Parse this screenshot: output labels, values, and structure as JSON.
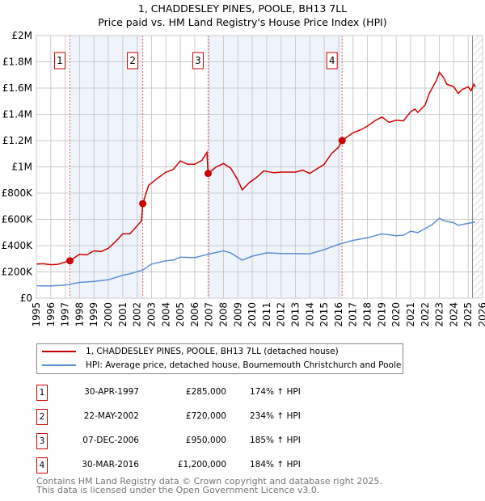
{
  "chart_data": {
    "type": "line",
    "title": "1, CHADDESLEY PINES, POOLE, BH13 7LL",
    "subtitle": "Price paid vs. HM Land Registry's House Price Index (HPI)",
    "xlim": [
      1995,
      2026
    ],
    "ylim": [
      0,
      2000000
    ],
    "x_ticks": [
      "1995",
      "1996",
      "1997",
      "1998",
      "1999",
      "2000",
      "2001",
      "2002",
      "2003",
      "2004",
      "2005",
      "2006",
      "2007",
      "2008",
      "2009",
      "2010",
      "2011",
      "2012",
      "2013",
      "2014",
      "2015",
      "2016",
      "2017",
      "2018",
      "2019",
      "2020",
      "2021",
      "2022",
      "2023",
      "2024",
      "2025",
      "2026"
    ],
    "y_ticks": [
      {
        "v": 0,
        "label": "£0"
      },
      {
        "v": 200000,
        "label": "£200K"
      },
      {
        "v": 400000,
        "label": "£400K"
      },
      {
        "v": 600000,
        "label": "£600K"
      },
      {
        "v": 800000,
        "label": "£800K"
      },
      {
        "v": 1000000,
        "label": "£1M"
      },
      {
        "v": 1200000,
        "label": "£1.2M"
      },
      {
        "v": 1400000,
        "label": "£1.4M"
      },
      {
        "v": 1600000,
        "label": "£1.6M"
      },
      {
        "v": 1800000,
        "label": "£1.8M"
      },
      {
        "v": 2000000,
        "label": "£2M"
      }
    ],
    "grid": true,
    "shaded_ranges": [
      [
        1997.33,
        2002.39
      ],
      [
        2006.93,
        2016.24
      ]
    ],
    "forecast_hatch_from": 2025.3,
    "series": [
      {
        "name": "1, CHADDESLEY PINES, POOLE, BH13 7LL (detached house)",
        "color": "#cc0000",
        "points": [
          [
            1995,
            260
          ],
          [
            1995.5,
            262
          ],
          [
            1996,
            255
          ],
          [
            1996.5,
            258
          ],
          [
            1997,
            275
          ],
          [
            1997.33,
            285
          ],
          [
            1998,
            335
          ],
          [
            1998.5,
            330
          ],
          [
            1999,
            360
          ],
          [
            1999.5,
            355
          ],
          [
            2000,
            380
          ],
          [
            2000.5,
            430
          ],
          [
            2001,
            490
          ],
          [
            2001.5,
            490
          ],
          [
            2002,
            550
          ],
          [
            2002.3,
            590
          ],
          [
            2002.39,
            720
          ],
          [
            2002.8,
            860
          ],
          [
            2003.5,
            920
          ],
          [
            2004,
            960
          ],
          [
            2004.5,
            980
          ],
          [
            2005,
            1045
          ],
          [
            2005.5,
            1020
          ],
          [
            2006,
            1020
          ],
          [
            2006.5,
            1050
          ],
          [
            2006.85,
            1110
          ],
          [
            2006.93,
            950
          ],
          [
            2007.5,
            1000
          ],
          [
            2008,
            1025
          ],
          [
            2008.5,
            990
          ],
          [
            2009,
            900
          ],
          [
            2009.3,
            825
          ],
          [
            2009.8,
            880
          ],
          [
            2010.3,
            920
          ],
          [
            2010.8,
            970
          ],
          [
            2011.5,
            955
          ],
          [
            2012,
            960
          ],
          [
            2013,
            960
          ],
          [
            2013.5,
            975
          ],
          [
            2014,
            950
          ],
          [
            2014.5,
            985
          ],
          [
            2015,
            1020
          ],
          [
            2015.5,
            1100
          ],
          [
            2016,
            1150
          ],
          [
            2016.24,
            1200
          ],
          [
            2017,
            1260
          ],
          [
            2017.5,
            1280
          ],
          [
            2018,
            1310
          ],
          [
            2018.5,
            1350
          ],
          [
            2019,
            1380
          ],
          [
            2019.5,
            1340
          ],
          [
            2020,
            1355
          ],
          [
            2020.5,
            1350
          ],
          [
            2021,
            1420
          ],
          [
            2021.3,
            1440
          ],
          [
            2021.5,
            1415
          ],
          [
            2022,
            1470
          ],
          [
            2022.3,
            1560
          ],
          [
            2022.8,
            1660
          ],
          [
            2023,
            1720
          ],
          [
            2023.3,
            1680
          ],
          [
            2023.5,
            1630
          ],
          [
            2024,
            1610
          ],
          [
            2024.3,
            1560
          ],
          [
            2024.6,
            1590
          ],
          [
            2025,
            1610
          ],
          [
            2025.2,
            1580
          ],
          [
            2025.4,
            1630
          ],
          [
            2025.5,
            1610
          ]
        ]
      },
      {
        "name": "HPI: Average price, detached house, Bournemouth Christchurch and Poole",
        "color": "#5b8fd4",
        "points": [
          [
            1995,
            95
          ],
          [
            1996,
            93
          ],
          [
            1997,
            100
          ],
          [
            1998,
            120
          ],
          [
            1999,
            128
          ],
          [
            2000,
            140
          ],
          [
            2001,
            175
          ],
          [
            2001.5,
            185
          ],
          [
            2002.4,
            215
          ],
          [
            2003,
            260
          ],
          [
            2004,
            285
          ],
          [
            2004.5,
            290
          ],
          [
            2005,
            312
          ],
          [
            2006,
            308
          ],
          [
            2006.93,
            335
          ],
          [
            2008,
            360
          ],
          [
            2008.5,
            345
          ],
          [
            2009.3,
            290
          ],
          [
            2010,
            320
          ],
          [
            2011,
            345
          ],
          [
            2012,
            340
          ],
          [
            2013,
            340
          ],
          [
            2014,
            338
          ],
          [
            2015,
            370
          ],
          [
            2016,
            410
          ],
          [
            2017,
            440
          ],
          [
            2018,
            460
          ],
          [
            2019,
            490
          ],
          [
            2020,
            475
          ],
          [
            2020.5,
            480
          ],
          [
            2021,
            510
          ],
          [
            2021.5,
            500
          ],
          [
            2022,
            530
          ],
          [
            2022.5,
            560
          ],
          [
            2023,
            610
          ],
          [
            2023.3,
            590
          ],
          [
            2024,
            575
          ],
          [
            2024.3,
            555
          ],
          [
            2025,
            570
          ],
          [
            2025.5,
            580
          ]
        ]
      }
    ],
    "y_unit_multiplier": 1000,
    "sales": [
      {
        "n": "1",
        "x": 1997.33,
        "value": 285000,
        "date": "30-APR-1997",
        "price": "£285,000",
        "hpi": "174% ↑ HPI"
      },
      {
        "n": "2",
        "x": 2002.39,
        "value": 720000,
        "date": "22-MAY-2002",
        "price": "£720,000",
        "hpi": "234% ↑ HPI"
      },
      {
        "n": "3",
        "x": 2006.93,
        "value": 950000,
        "date": "07-DEC-2006",
        "price": "£950,000",
        "hpi": "185% ↑ HPI"
      },
      {
        "n": "4",
        "x": 2016.24,
        "value": 1200000,
        "date": "30-MAR-2016",
        "price": "£1,200,000",
        "hpi": "184% ↑ HPI"
      }
    ]
  },
  "footer": [
    "Contains HM Land Registry data © Crown copyright and database right 2025.",
    "This data is licensed under the Open Government Licence v3.0."
  ]
}
